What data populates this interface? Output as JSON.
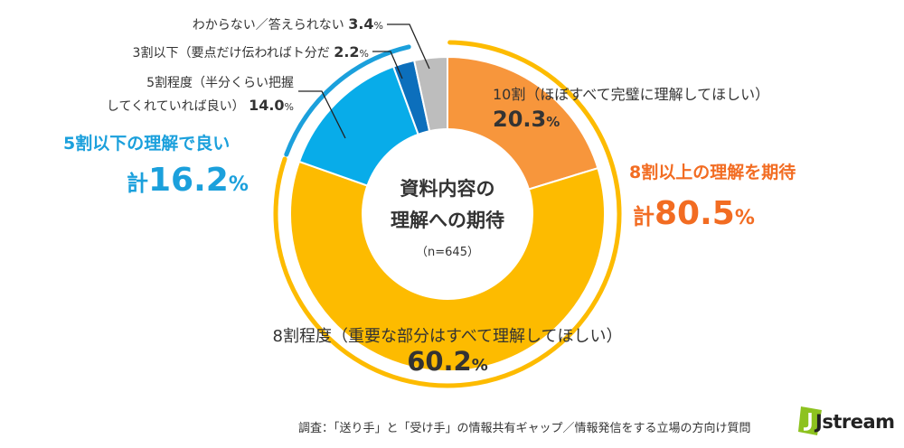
{
  "chart_data": {
    "type": "pie",
    "title_lines": [
      "資料内容の",
      "理解への期待"
    ],
    "n_label": "（n=645）",
    "slices": [
      {
        "label": "10割（ほぼすべて完璧に理解してほしい）",
        "value": 20.3,
        "value_text": "20.3",
        "color": "#F7963C"
      },
      {
        "label": "8割程度（重要な部分はすべて理解してほしい）",
        "value": 60.2,
        "value_text": "60.2",
        "color": "#FDBB00"
      },
      {
        "label_lines": [
          "5割程度（半分くらい把握",
          "してくれていれば良い）"
        ],
        "value": 14.0,
        "value_text": "14.0",
        "color": "#08ACE9"
      },
      {
        "label": "3割以下（要点だけ伝わればト分だ",
        "value": 2.2,
        "value_text": "2.2",
        "color": "#0C6FBC"
      },
      {
        "label": "わからない／答えられない",
        "value": 3.4,
        "value_text": "3.4",
        "color": "#BDBDBD"
      }
    ],
    "percent_sign": "%",
    "groups": [
      {
        "label": "8割以上の理解を期待",
        "prefix": "計",
        "total": "80.5",
        "color": "#F26C22"
      },
      {
        "label": "5割以下の理解で良い",
        "prefix": "計",
        "total": "16.2",
        "color": "#1BA0DC"
      }
    ],
    "outer_ring_colors": {
      "high": "#FDBB00",
      "low": "#1BA0DC"
    }
  },
  "footer": {
    "note": "調査：「送り手」と「受け手」の情報共有ギャップ／情報発信をする立場の方向け質問"
  },
  "logo": {
    "text": "Jstream",
    "brand_color": "#8DC21F"
  }
}
